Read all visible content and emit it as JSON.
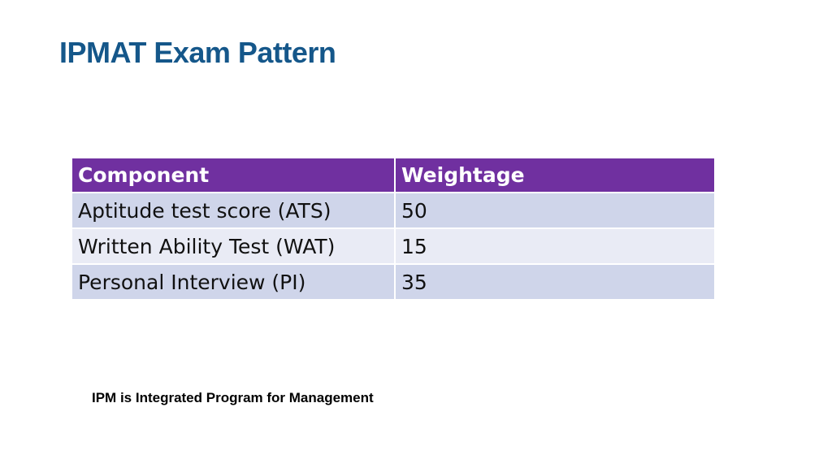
{
  "title": "IPMAT Exam Pattern",
  "table": {
    "header": [
      "Component",
      "Weightage"
    ],
    "rows": [
      [
        "Aptitude test score (ATS)",
        50
      ],
      [
        "Written Ability Test (WAT)",
        15
      ],
      [
        "Personal Interview (PI)",
        35
      ]
    ]
  },
  "footnote": "IPM is Integrated Program for Management"
}
